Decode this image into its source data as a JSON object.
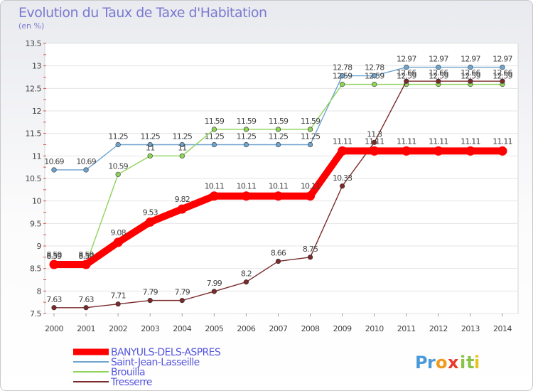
{
  "header": {
    "title": "Evolution du Taux de Taxe d'Habitation",
    "unit": "(en %)"
  },
  "logo": {
    "text": "Proxiti",
    "letters": [
      {
        "ch": "P",
        "color": "#4a9ad8"
      },
      {
        "ch": "r",
        "color": "#4a9ad8"
      },
      {
        "ch": "o",
        "color": "#f29a1b"
      },
      {
        "ch": "x",
        "color": "#e83a2a"
      },
      {
        "ch": "i",
        "color": "#8bc34a"
      },
      {
        "ch": "t",
        "color": "#8bc34a"
      },
      {
        "ch": "i",
        "color": "#e8c31c"
      }
    ]
  },
  "chart_data": {
    "type": "line",
    "title": "Evolution du Taux de Taxe d'Habitation",
    "ylabel": "(en %)",
    "xlabel": "",
    "x": [
      "2000",
      "2001",
      "2002",
      "2003",
      "2004",
      "2005",
      "2006",
      "2007",
      "2008",
      "2009",
      "2010",
      "2011",
      "2012",
      "2013",
      "2014"
    ],
    "ylim": [
      7.5,
      13.5
    ],
    "yticks": [
      "7.5",
      "8",
      "8.5",
      "9",
      "9.5",
      "10",
      "10.5",
      "11",
      "11.5",
      "12",
      "12.5",
      "13",
      "13.5"
    ],
    "grid": true,
    "legend_position": "bottom-left",
    "series": [
      {
        "name": "BANYULS-DELS-ASPRES",
        "color": "#ff0000",
        "highlight": true,
        "values": [
          8.59,
          8.59,
          9.08,
          9.53,
          9.82,
          10.11,
          10.11,
          10.11,
          10.11,
          11.11,
          11.11,
          11.11,
          11.11,
          11.11,
          11.11
        ],
        "labels": [
          "8.59",
          "8.59",
          "9.08",
          "9.53",
          "9.82",
          "10.11",
          "10.11",
          "10.11",
          "10.11",
          "11.11",
          "11.11",
          "11.11",
          "11.11",
          "11.11",
          "11.11"
        ]
      },
      {
        "name": "Saint-Jean-Lasseille",
        "color": "#6fa4cf",
        "values": [
          10.69,
          10.69,
          11.25,
          11.25,
          11.25,
          11.25,
          11.25,
          11.25,
          11.25,
          12.78,
          12.78,
          12.97,
          12.97,
          12.97,
          12.97
        ],
        "labels": [
          "10.69",
          "10.69",
          "11.25",
          "11.25",
          "11.25",
          "11.25",
          "11.25",
          "11.25",
          "11.25",
          "12.78",
          "12.78",
          "12.97",
          "12.97",
          "12.97",
          "12.97"
        ]
      },
      {
        "name": "Brouilla",
        "color": "#8fd35a",
        "values": [
          8.59,
          8.59,
          10.59,
          11,
          11,
          11.59,
          11.59,
          11.59,
          11.59,
          12.59,
          12.59,
          12.59,
          12.59,
          12.59,
          12.59
        ],
        "labels": [
          "8.59",
          "8.59",
          "10.59",
          "11",
          "11",
          "11.59",
          "11.59",
          "11.59",
          "11.59",
          "12.59",
          "12.59",
          "12.59",
          "12.59",
          "12.59",
          "12.59"
        ]
      },
      {
        "name": "Tresserre",
        "color": "#7a2a2a",
        "values": [
          7.63,
          7.63,
          7.71,
          7.79,
          7.79,
          7.99,
          8.2,
          8.66,
          8.75,
          10.33,
          11.3,
          12.66,
          12.66,
          12.66,
          12.66
        ],
        "labels": [
          "7.63",
          "7.63",
          "7.71",
          "7.79",
          "7.79",
          "7.99",
          "8.2",
          "8.66",
          "8.75",
          "10.33",
          "11.3",
          "12.66",
          "12.66",
          "12.66",
          "12.66"
        ]
      }
    ]
  }
}
